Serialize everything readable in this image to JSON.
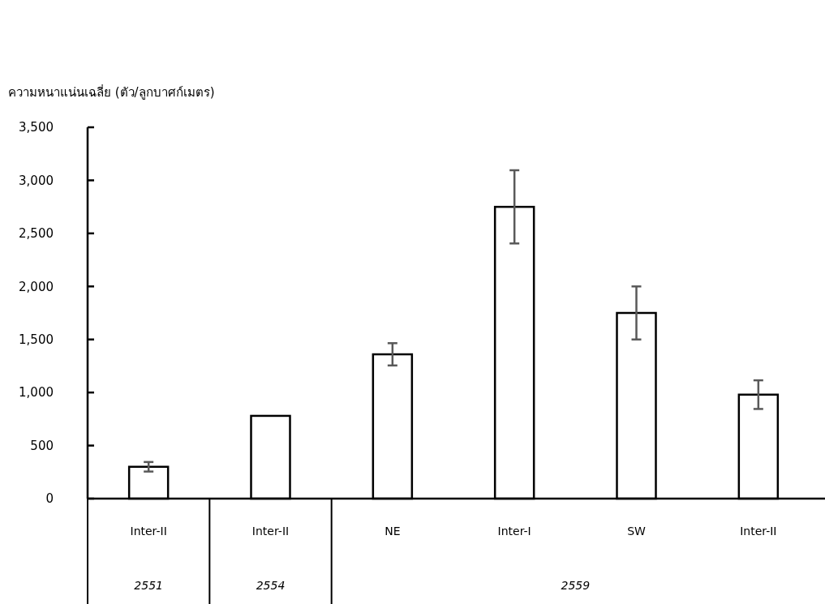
{
  "chart_data": {
    "type": "bar",
    "ylabel": "ความหนาแน่นเฉลี่ย (ตัว/ลูกบาศก์เมตร)",
    "categories": [
      "Inter-II",
      "Inter-II",
      "NE",
      "Inter-I",
      "SW",
      "Inter-II"
    ],
    "values": [
      300,
      780,
      1360,
      2750,
      1750,
      980
    ],
    "errors": [
      45,
      null,
      105,
      345,
      250,
      135
    ],
    "color": "#ffffff",
    "ylim": [
      0,
      3500
    ],
    "yticks": [
      {
        "value": 0,
        "label": "0"
      },
      {
        "value": 500,
        "label": "500"
      },
      {
        "value": 1000,
        "label": "1,000"
      },
      {
        "value": 1500,
        "label": "1,500"
      },
      {
        "value": 2000,
        "label": "2,000"
      },
      {
        "value": 2500,
        "label": "2,500"
      },
      {
        "value": 3000,
        "label": "3,000"
      },
      {
        "value": 3500,
        "label": "3,500"
      }
    ],
    "annotations": [
      "2551",
      "2554",
      "2559"
    ],
    "grid": false
  }
}
